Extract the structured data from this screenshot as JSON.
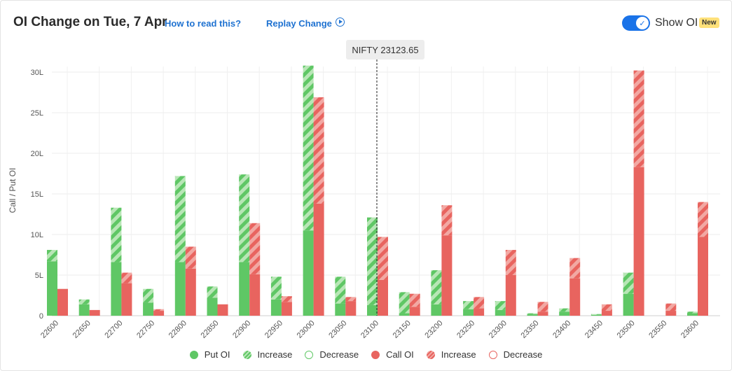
{
  "header": {
    "title": "OI Change on Tue, 7 Apr",
    "how_to_read": "How to read this?",
    "replay": "Replay Change",
    "show_oi_label": "Show OI",
    "new_badge": "New",
    "show_oi_on": true
  },
  "tooltip": {
    "text": "NIFTY 23123.65"
  },
  "colors": {
    "put": "#5fc765",
    "call": "#e8645f",
    "put_light": "#b8e6b6",
    "call_light": "#f2a8a3"
  },
  "legend": [
    {
      "label": "Put OI",
      "kind": "put-solid"
    },
    {
      "label": "Increase",
      "kind": "put-increase"
    },
    {
      "label": "Decrease",
      "kind": "put-decrease"
    },
    {
      "label": "Call OI",
      "kind": "call-solid"
    },
    {
      "label": "Increase",
      "kind": "call-increase"
    },
    {
      "label": "Decrease",
      "kind": "call-decrease"
    }
  ],
  "chart_data": {
    "type": "bar",
    "ylabel": "Call / Put OI",
    "ylim": [
      0,
      30
    ],
    "yticks": [
      "0",
      "5L",
      "10L",
      "15L",
      "20L",
      "25L",
      "30L"
    ],
    "spot_strike_position": 23100,
    "categories": [
      "22600",
      "22650",
      "22700",
      "22750",
      "22800",
      "22850",
      "22900",
      "22950",
      "23000",
      "23050",
      "23100",
      "23150",
      "23200",
      "23250",
      "23300",
      "23350",
      "23400",
      "23450",
      "23500",
      "23550",
      "23600"
    ],
    "series": [
      {
        "name": "Put OI",
        "base": [
          6.7,
          1.4,
          6.6,
          1.6,
          6.6,
          2.2,
          6.6,
          2.0,
          10.5,
          1.5,
          1.3,
          0.3,
          1.4,
          0.8,
          0.7,
          0.2,
          0.5,
          0.1,
          2.7,
          0.0,
          0.3
        ],
        "increase": [
          1.4,
          0.6,
          6.7,
          1.7,
          10.6,
          1.4,
          10.8,
          2.8,
          20.3,
          3.3,
          10.8,
          2.6,
          4.2,
          1.0,
          1.1,
          0.1,
          0.4,
          0.1,
          2.6,
          0.0,
          0.2
        ]
      },
      {
        "name": "Call OI",
        "base": [
          3.3,
          0.7,
          4.0,
          0.6,
          5.8,
          1.4,
          5.1,
          1.7,
          13.8,
          1.8,
          4.4,
          1.1,
          9.9,
          0.9,
          5.0,
          0.5,
          4.6,
          0.6,
          18.3,
          0.6,
          9.7
        ],
        "increase": [
          0.0,
          0.0,
          1.3,
          0.2,
          2.7,
          0.0,
          6.3,
          0.7,
          13.1,
          0.5,
          5.3,
          1.6,
          3.7,
          1.4,
          3.1,
          1.2,
          2.5,
          0.8,
          11.9,
          0.9,
          4.3
        ]
      }
    ]
  }
}
